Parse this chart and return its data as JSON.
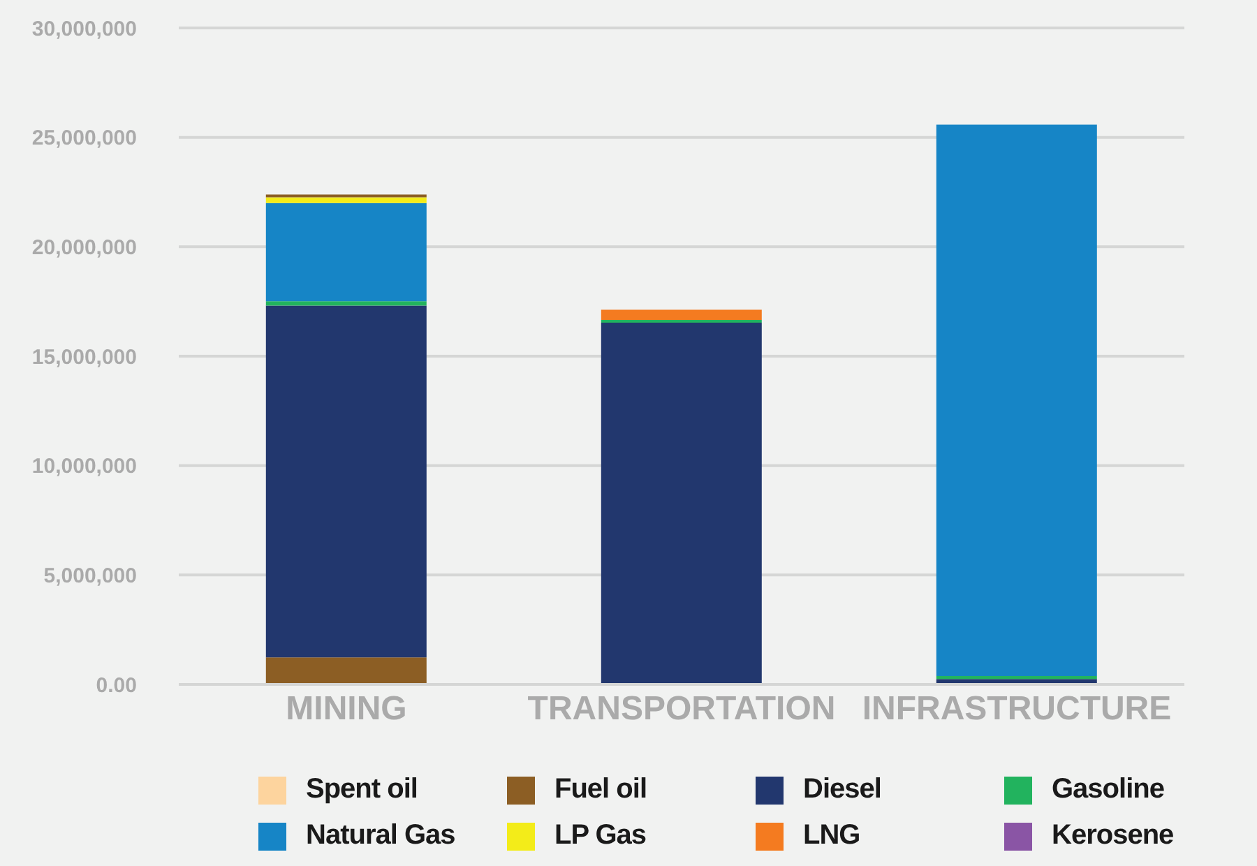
{
  "chart_data": {
    "type": "bar",
    "stacked": true,
    "categories": [
      "MINING",
      "TRANSPORTATION",
      "INFRASTRUCTURE"
    ],
    "series": [
      {
        "name": "Spent oil",
        "color": "#fdd49e",
        "values": [
          0,
          0,
          0
        ]
      },
      {
        "name": "Fuel oil",
        "color": "#8c5e24",
        "values": [
          1240000,
          0,
          0
        ]
      },
      {
        "name": "Diesel",
        "color": "#22376e",
        "values": [
          16070000,
          16530000,
          250000
        ]
      },
      {
        "name": "Gasoline",
        "color": "#22b35e",
        "values": [
          200000,
          130000,
          130000
        ]
      },
      {
        "name": "Natural Gas",
        "color": "#1685c6",
        "values": [
          4490000,
          0,
          25200000
        ]
      },
      {
        "name": "LP Gas",
        "color": "#f3ec19",
        "values": [
          260000,
          0,
          0
        ]
      },
      {
        "name": "LNG",
        "color": "#f47b20",
        "values": [
          0,
          460000,
          0
        ]
      },
      {
        "name": "Kerosene",
        "color": "#8a55a5",
        "values": [
          0,
          0,
          0
        ]
      },
      {
        "color": "#8c5e24",
        "values": [
          130000,
          0,
          0
        ]
      }
    ],
    "ylim": [
      0,
      30000000
    ],
    "yticks": [
      {
        "value": 0,
        "label": "0.00"
      },
      {
        "value": 5000000,
        "label": "5,000,000"
      },
      {
        "value": 10000000,
        "label": "10,000,000"
      },
      {
        "value": 15000000,
        "label": "15,000,000"
      },
      {
        "value": 20000000,
        "label": "20,000,000"
      },
      {
        "value": 25000000,
        "label": "25,000,000"
      },
      {
        "value": 30000000,
        "label": "30,000,000"
      }
    ],
    "grid": "y",
    "legend": "bottom"
  }
}
